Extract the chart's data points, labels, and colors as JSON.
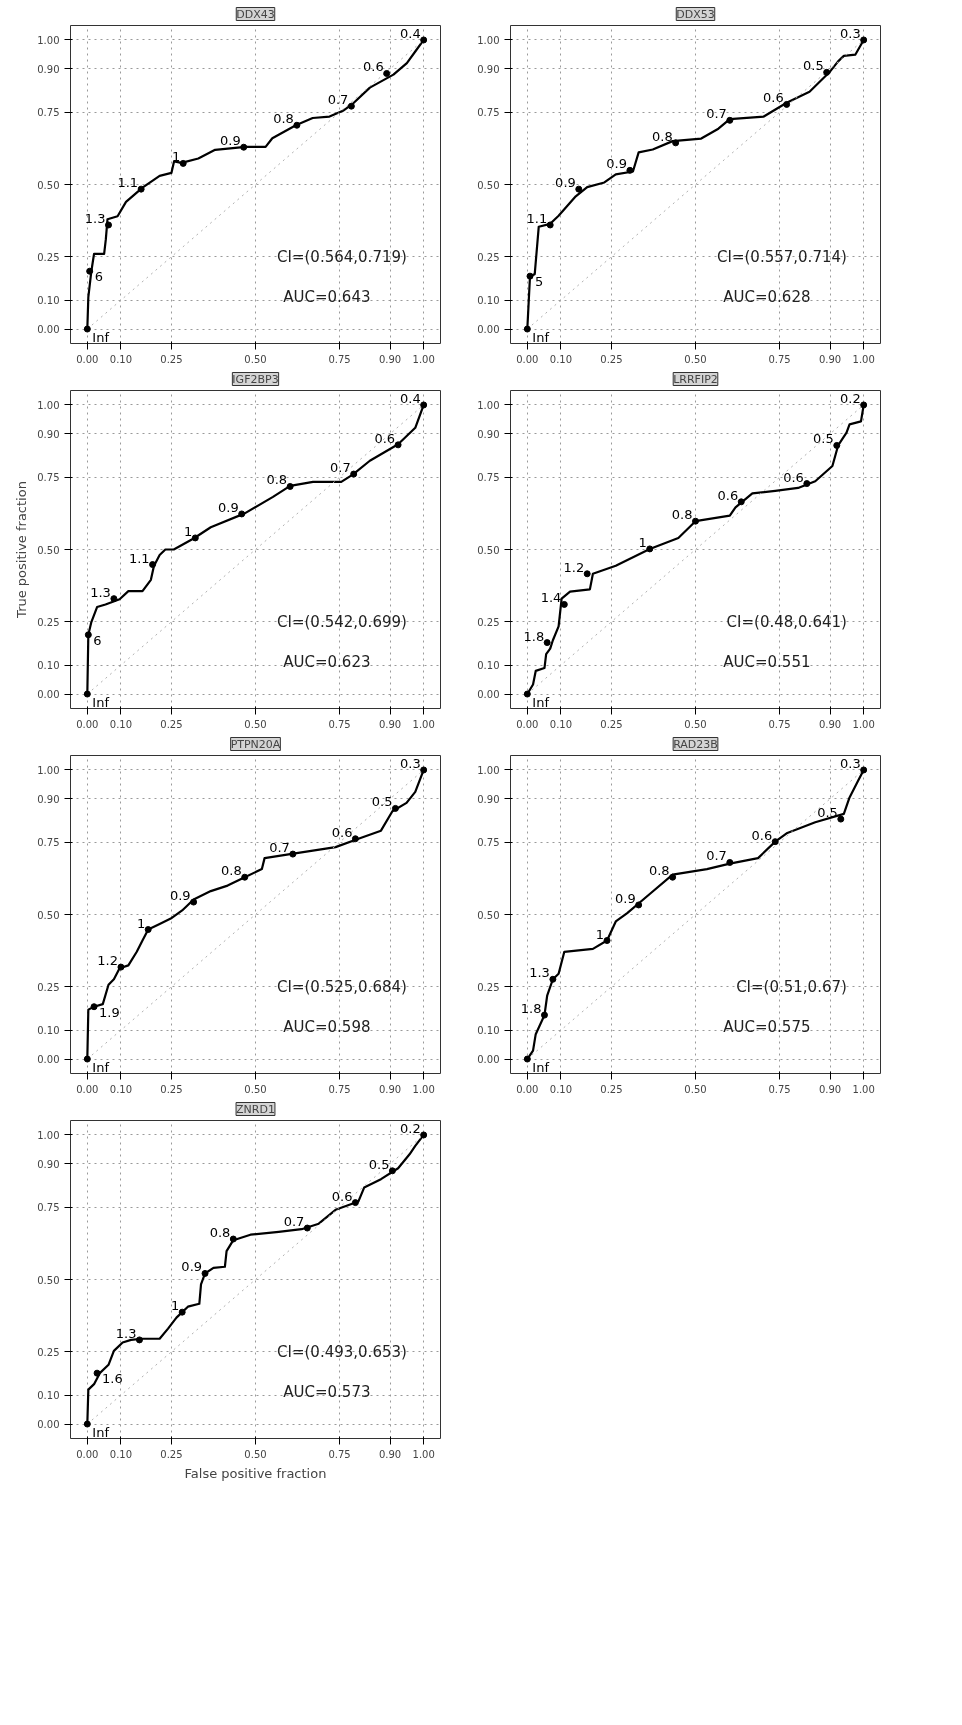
{
  "chart_data": [
    {
      "type": "line",
      "title": "DDX43",
      "xlim": [
        -0.05,
        1.05
      ],
      "ylim": [
        -0.05,
        1.05
      ],
      "xticks": [
        {
          "value": 0,
          "label": "0.00"
        },
        {
          "value": 0.1,
          "label": "0.10"
        },
        {
          "value": 0.25,
          "label": "0.25"
        },
        {
          "value": 0.5,
          "label": "0.50"
        },
        {
          "value": 0.75,
          "label": "0.75"
        },
        {
          "value": 0.9,
          "label": "0.90"
        },
        {
          "value": 1,
          "label": "1.00"
        }
      ],
      "yticks": [
        {
          "value": 0,
          "label": "0.00"
        },
        {
          "value": 0.1,
          "label": "0.10"
        },
        {
          "value": 0.25,
          "label": "0.25"
        },
        {
          "value": 0.5,
          "label": "0.50"
        },
        {
          "value": 0.75,
          "label": "0.75"
        },
        {
          "value": 0.9,
          "label": "0.90"
        },
        {
          "value": 1,
          "label": "1.00"
        }
      ],
      "grid": true,
      "series": [
        {
          "color": "#000000",
          "x": [
            0,
            0.003,
            0.012,
            0.02,
            0.05,
            0.055,
            0.06,
            0.09,
            0.115,
            0.165,
            0.19,
            0.215,
            0.25,
            0.258,
            0.28,
            0.33,
            0.38,
            0.47,
            0.53,
            0.55,
            0.62,
            0.67,
            0.72,
            0.76,
            0.79,
            0.84,
            0.91,
            0.95,
            0.975,
            1
          ],
          "values": [
            0,
            0.11,
            0.2,
            0.26,
            0.26,
            0.31,
            0.38,
            0.39,
            0.44,
            0.49,
            0.51,
            0.53,
            0.54,
            0.58,
            0.575,
            0.59,
            0.62,
            0.63,
            0.63,
            0.66,
            0.705,
            0.73,
            0.735,
            0.755,
            0.78,
            0.835,
            0.88,
            0.92,
            0.96,
            1
          ]
        },
        {
          "color": "#b0b0b0",
          "line_style": "dotted",
          "x": [
            0,
            1
          ],
          "values": [
            0,
            1
          ]
        }
      ],
      "annotations": [
        {
          "text": "Inf",
          "x": 0,
          "y": 0
        },
        {
          "text": "6",
          "x": 0.007,
          "y": 0.2
        },
        {
          "text": "1.3",
          "x": 0.063,
          "y": 0.36
        },
        {
          "text": "1.1",
          "x": 0.16,
          "y": 0.484
        },
        {
          "text": "1",
          "x": 0.285,
          "y": 0.573
        },
        {
          "text": "0.9",
          "x": 0.465,
          "y": 0.629
        },
        {
          "text": "0.8",
          "x": 0.623,
          "y": 0.705
        },
        {
          "text": "0.7",
          "x": 0.785,
          "y": 0.771
        },
        {
          "text": "0.6",
          "x": 0.89,
          "y": 0.884
        },
        {
          "text": "0.4",
          "x": 1,
          "y": 1
        },
        "CI=(0.564,0.719)",
        "AUC=0.643"
      ]
    },
    {
      "type": "line",
      "title": "DDX53",
      "xlim": [
        -0.05,
        1.05
      ],
      "ylim": [
        -0.05,
        1.05
      ],
      "xticks": [
        {
          "value": 0,
          "label": "0.00"
        },
        {
          "value": 0.1,
          "label": "0.10"
        },
        {
          "value": 0.25,
          "label": "0.25"
        },
        {
          "value": 0.5,
          "label": "0.50"
        },
        {
          "value": 0.75,
          "label": "0.75"
        },
        {
          "value": 0.9,
          "label": "0.90"
        },
        {
          "value": 1,
          "label": "1.00"
        }
      ],
      "yticks": [
        {
          "value": 0,
          "label": "0.00"
        },
        {
          "value": 0.1,
          "label": "0.10"
        },
        {
          "value": 0.25,
          "label": "0.25"
        },
        {
          "value": 0.5,
          "label": "0.50"
        },
        {
          "value": 0.75,
          "label": "0.75"
        },
        {
          "value": 0.9,
          "label": "0.90"
        },
        {
          "value": 1,
          "label": "1.00"
        }
      ],
      "grid": true,
      "series": [
        {
          "color": "#000000",
          "x": [
            0,
            0.008,
            0.022,
            0.034,
            0.068,
            0.093,
            0.144,
            0.178,
            0.229,
            0.263,
            0.314,
            0.331,
            0.373,
            0.432,
            0.517,
            0.568,
            0.602,
            0.703,
            0.771,
            0.839,
            0.898,
            0.924,
            0.941,
            0.975,
            1
          ],
          "values": [
            0,
            0.183,
            0.19,
            0.354,
            0.364,
            0.392,
            0.459,
            0.491,
            0.507,
            0.535,
            0.545,
            0.611,
            0.621,
            0.65,
            0.659,
            0.693,
            0.726,
            0.735,
            0.783,
            0.821,
            0.888,
            0.926,
            0.945,
            0.949,
            1
          ]
        },
        {
          "color": "#b0b0b0",
          "line_style": "dotted",
          "x": [
            0,
            1
          ],
          "values": [
            0,
            1
          ]
        }
      ],
      "annotations": [
        {
          "text": "Inf",
          "x": 0,
          "y": 0
        },
        {
          "text": "5",
          "x": 0.008,
          "y": 0.183
        },
        {
          "text": "1.1",
          "x": 0.068,
          "y": 0.36
        },
        {
          "text": "0.9",
          "x": 0.153,
          "y": 0.484
        },
        {
          "text": "0.9",
          "x": 0.305,
          "y": 0.549
        },
        {
          "text": "0.8",
          "x": 0.441,
          "y": 0.644
        },
        {
          "text": "0.7",
          "x": 0.602,
          "y": 0.722
        },
        {
          "text": "0.6",
          "x": 0.771,
          "y": 0.777
        },
        {
          "text": "0.5",
          "x": 0.89,
          "y": 0.888
        },
        {
          "text": "0.3",
          "x": 1,
          "y": 1
        },
        "CI=(0.557,0.714)",
        "AUC=0.628"
      ]
    },
    {
      "type": "line",
      "title": "IGF2BP3",
      "ylabel": "True positive fraction",
      "xlim": [
        -0.05,
        1.05
      ],
      "ylim": [
        -0.05,
        1.05
      ],
      "xticks": [
        {
          "value": 0,
          "label": "0.00"
        },
        {
          "value": 0.1,
          "label": "0.10"
        },
        {
          "value": 0.25,
          "label": "0.25"
        },
        {
          "value": 0.5,
          "label": "0.50"
        },
        {
          "value": 0.75,
          "label": "0.75"
        },
        {
          "value": 0.9,
          "label": "0.90"
        },
        {
          "value": 1,
          "label": "1.00"
        }
      ],
      "yticks": [
        {
          "value": 0,
          "label": "0.00"
        },
        {
          "value": 0.1,
          "label": "0.10"
        },
        {
          "value": 0.25,
          "label": "0.25"
        },
        {
          "value": 0.5,
          "label": "0.50"
        },
        {
          "value": 0.75,
          "label": "0.75"
        },
        {
          "value": 0.9,
          "label": "0.90"
        },
        {
          "value": 1,
          "label": "1.00"
        }
      ],
      "grid": true,
      "series": [
        {
          "color": "#000000",
          "x": [
            0,
            0.003,
            0.012,
            0.029,
            0.054,
            0.096,
            0.122,
            0.164,
            0.189,
            0.198,
            0.215,
            0.232,
            0.257,
            0.316,
            0.367,
            0.468,
            0.552,
            0.603,
            0.671,
            0.755,
            0.789,
            0.84,
            0.924,
            0.975,
            1
          ],
          "values": [
            0,
            0.205,
            0.249,
            0.301,
            0.31,
            0.328,
            0.356,
            0.356,
            0.395,
            0.443,
            0.481,
            0.5,
            0.5,
            0.538,
            0.577,
            0.625,
            0.682,
            0.72,
            0.734,
            0.734,
            0.759,
            0.807,
            0.864,
            0.921,
            1
          ]
        },
        {
          "color": "#b0b0b0",
          "line_style": "dotted",
          "x": [
            0,
            1
          ],
          "values": [
            0,
            1
          ]
        }
      ],
      "annotations": [
        {
          "text": "Inf",
          "x": 0,
          "y": 0
        },
        {
          "text": "6",
          "x": 0.003,
          "y": 0.205
        },
        {
          "text": "1.3",
          "x": 0.079,
          "y": 0.33
        },
        {
          "text": "1.1",
          "x": 0.194,
          "y": 0.448
        },
        {
          "text": "1",
          "x": 0.321,
          "y": 0.54
        },
        {
          "text": "0.9",
          "x": 0.459,
          "y": 0.623
        },
        {
          "text": "0.8",
          "x": 0.603,
          "y": 0.718
        },
        {
          "text": "0.7",
          "x": 0.792,
          "y": 0.761
        },
        {
          "text": "0.6",
          "x": 0.924,
          "y": 0.862
        },
        {
          "text": "0.4",
          "x": 1,
          "y": 1
        },
        "CI=(0.542,0.699)",
        "AUC=0.623"
      ]
    },
    {
      "type": "line",
      "title": "LRRFIP2",
      "xlim": [
        -0.05,
        1.05
      ],
      "ylim": [
        -0.05,
        1.05
      ],
      "xticks": [
        {
          "value": 0,
          "label": "0.00"
        },
        {
          "value": 0.1,
          "label": "0.10"
        },
        {
          "value": 0.25,
          "label": "0.25"
        },
        {
          "value": 0.5,
          "label": "0.50"
        },
        {
          "value": 0.75,
          "label": "0.75"
        },
        {
          "value": 0.9,
          "label": "0.90"
        },
        {
          "value": 1,
          "label": "1.00"
        }
      ],
      "yticks": [
        {
          "value": 0,
          "label": "0.00"
        },
        {
          "value": 0.1,
          "label": "0.10"
        },
        {
          "value": 0.25,
          "label": "0.25"
        },
        {
          "value": 0.5,
          "label": "0.50"
        },
        {
          "value": 0.75,
          "label": "0.75"
        },
        {
          "value": 0.9,
          "label": "0.90"
        },
        {
          "value": 1,
          "label": "1.00"
        }
      ],
      "grid": true,
      "series": [
        {
          "color": "#000000",
          "x": [
            0,
            0.017,
            0.025,
            0.051,
            0.056,
            0.068,
            0.076,
            0.093,
            0.102,
            0.127,
            0.186,
            0.195,
            0.263,
            0.364,
            0.449,
            0.5,
            0.602,
            0.619,
            0.669,
            0.737,
            0.805,
            0.856,
            0.907,
            0.924,
            0.949,
            0.958,
            0.992,
            1
          ],
          "values": [
            0,
            0.033,
            0.08,
            0.09,
            0.138,
            0.157,
            0.186,
            0.234,
            0.33,
            0.354,
            0.362,
            0.416,
            0.444,
            0.502,
            0.54,
            0.598,
            0.617,
            0.646,
            0.694,
            0.703,
            0.713,
            0.736,
            0.789,
            0.86,
            0.904,
            0.933,
            0.943,
            1
          ]
        },
        {
          "color": "#b0b0b0",
          "line_style": "dotted",
          "x": [
            0,
            1
          ],
          "values": [
            0,
            1
          ]
        }
      ],
      "annotations": [
        {
          "text": "Inf",
          "x": 0,
          "y": 0
        },
        {
          "text": "1.8",
          "x": 0.059,
          "y": 0.178
        },
        {
          "text": "1.4",
          "x": 0.11,
          "y": 0.31
        },
        {
          "text": "1.2",
          "x": 0.178,
          "y": 0.416
        },
        {
          "text": "1",
          "x": 0.364,
          "y": 0.502
        },
        {
          "text": "0.8",
          "x": 0.5,
          "y": 0.598
        },
        {
          "text": "0.6",
          "x": 0.636,
          "y": 0.665
        },
        {
          "text": "0.6",
          "x": 0.831,
          "y": 0.728
        },
        {
          "text": "0.5",
          "x": 0.92,
          "y": 0.86
        },
        {
          "text": "0.2",
          "x": 1,
          "y": 1
        },
        "CI=(0.48,0.641)",
        "AUC=0.551"
      ]
    },
    {
      "type": "line",
      "title": "PTPN20A",
      "xlim": [
        -0.05,
        1.05
      ],
      "ylim": [
        -0.05,
        1.05
      ],
      "xticks": [
        {
          "value": 0,
          "label": "0.00"
        },
        {
          "value": 0.1,
          "label": "0.10"
        },
        {
          "value": 0.25,
          "label": "0.25"
        },
        {
          "value": 0.5,
          "label": "0.50"
        },
        {
          "value": 0.75,
          "label": "0.75"
        },
        {
          "value": 0.9,
          "label": "0.90"
        },
        {
          "value": 1,
          "label": "1.00"
        }
      ],
      "yticks": [
        {
          "value": 0,
          "label": "0.00"
        },
        {
          "value": 0.1,
          "label": "0.10"
        },
        {
          "value": 0.25,
          "label": "0.25"
        },
        {
          "value": 0.5,
          "label": "0.50"
        },
        {
          "value": 0.75,
          "label": "0.75"
        },
        {
          "value": 0.9,
          "label": "0.90"
        },
        {
          "value": 1,
          "label": "1.00"
        }
      ],
      "grid": true,
      "series": [
        {
          "color": "#000000",
          "x": [
            0,
            0.003,
            0.02,
            0.046,
            0.063,
            0.079,
            0.096,
            0.122,
            0.147,
            0.164,
            0.181,
            0.215,
            0.248,
            0.282,
            0.316,
            0.367,
            0.417,
            0.468,
            0.519,
            0.527,
            0.603,
            0.738,
            0.806,
            0.873,
            0.907,
            0.949,
            0.975,
            1
          ],
          "values": [
            0,
            0.171,
            0.181,
            0.19,
            0.257,
            0.276,
            0.314,
            0.324,
            0.371,
            0.41,
            0.448,
            0.467,
            0.486,
            0.514,
            0.552,
            0.581,
            0.6,
            0.629,
            0.657,
            0.695,
            0.709,
            0.733,
            0.762,
            0.79,
            0.857,
            0.886,
            0.924,
            1
          ]
        },
        {
          "color": "#b0b0b0",
          "line_style": "dotted",
          "x": [
            0,
            1
          ],
          "values": [
            0,
            1
          ]
        }
      ],
      "annotations": [
        {
          "text": "Inf",
          "x": 0,
          "y": 0
        },
        {
          "text": "1.9",
          "x": 0.02,
          "y": 0.181
        },
        {
          "text": "1.2",
          "x": 0.1,
          "y": 0.318
        },
        {
          "text": "1",
          "x": 0.181,
          "y": 0.448
        },
        {
          "text": "0.9",
          "x": 0.316,
          "y": 0.543
        },
        {
          "text": "0.8",
          "x": 0.468,
          "y": 0.629
        },
        {
          "text": "0.7",
          "x": 0.611,
          "y": 0.709
        },
        {
          "text": "0.6",
          "x": 0.797,
          "y": 0.762
        },
        {
          "text": "0.5",
          "x": 0.916,
          "y": 0.867
        },
        {
          "text": "0.3",
          "x": 1,
          "y": 1
        },
        "CI=(0.525,0.684)",
        "AUC=0.598"
      ]
    },
    {
      "type": "line",
      "title": "RAD23B",
      "xlim": [
        -0.05,
        1.05
      ],
      "ylim": [
        -0.05,
        1.05
      ],
      "xticks": [
        {
          "value": 0,
          "label": "0.00"
        },
        {
          "value": 0.1,
          "label": "0.10"
        },
        {
          "value": 0.25,
          "label": "0.25"
        },
        {
          "value": 0.5,
          "label": "0.50"
        },
        {
          "value": 0.75,
          "label": "0.75"
        },
        {
          "value": 0.9,
          "label": "0.90"
        },
        {
          "value": 1,
          "label": "1.00"
        }
      ],
      "yticks": [
        {
          "value": 0,
          "label": "0.00"
        },
        {
          "value": 0.1,
          "label": "0.10"
        },
        {
          "value": 0.25,
          "label": "0.25"
        },
        {
          "value": 0.5,
          "label": "0.50"
        },
        {
          "value": 0.75,
          "label": "0.75"
        },
        {
          "value": 0.9,
          "label": "0.90"
        },
        {
          "value": 1,
          "label": "1.00"
        }
      ],
      "grid": true,
      "series": [
        {
          "color": "#000000",
          "x": [
            0,
            0.017,
            0.025,
            0.051,
            0.059,
            0.076,
            0.093,
            0.11,
            0.195,
            0.237,
            0.263,
            0.297,
            0.364,
            0.432,
            0.534,
            0.602,
            0.686,
            0.737,
            0.771,
            0.856,
            0.941,
            0.958,
            0.983,
            1
          ],
          "values": [
            0,
            0.029,
            0.086,
            0.152,
            0.219,
            0.276,
            0.295,
            0.371,
            0.381,
            0.41,
            0.476,
            0.505,
            0.571,
            0.638,
            0.657,
            0.676,
            0.695,
            0.752,
            0.781,
            0.819,
            0.848,
            0.905,
            0.962,
            1
          ]
        },
        {
          "color": "#b0b0b0",
          "line_style": "dotted",
          "x": [
            0,
            1
          ],
          "values": [
            0,
            1
          ]
        }
      ],
      "annotations": [
        {
          "text": "Inf",
          "x": 0,
          "y": 0
        },
        {
          "text": "1.8",
          "x": 0.051,
          "y": 0.152
        },
        {
          "text": "1.3",
          "x": 0.076,
          "y": 0.276
        },
        {
          "text": "1",
          "x": 0.237,
          "y": 0.41
        },
        {
          "text": "0.9",
          "x": 0.331,
          "y": 0.533
        },
        {
          "text": "0.8",
          "x": 0.432,
          "y": 0.629
        },
        {
          "text": "0.7",
          "x": 0.602,
          "y": 0.68
        },
        {
          "text": "0.6",
          "x": 0.737,
          "y": 0.752
        },
        {
          "text": "0.5",
          "x": 0.932,
          "y": 0.83
        },
        {
          "text": "0.3",
          "x": 1,
          "y": 1
        },
        "CI=(0.51,0.67)",
        "AUC=0.575"
      ]
    },
    {
      "type": "line",
      "title": "ZNRD1",
      "xlabel": "False positive fraction",
      "xlim": [
        -0.05,
        1.05
      ],
      "ylim": [
        -0.05,
        1.05
      ],
      "xticks": [
        {
          "value": 0,
          "label": "0.00"
        },
        {
          "value": 0.1,
          "label": "0.10"
        },
        {
          "value": 0.25,
          "label": "0.25"
        },
        {
          "value": 0.5,
          "label": "0.50"
        },
        {
          "value": 0.75,
          "label": "0.75"
        },
        {
          "value": 0.9,
          "label": "0.90"
        },
        {
          "value": 1,
          "label": "1.00"
        }
      ],
      "yticks": [
        {
          "value": 0,
          "label": "0.00"
        },
        {
          "value": 0.1,
          "label": "0.10"
        },
        {
          "value": 0.25,
          "label": "0.25"
        },
        {
          "value": 0.5,
          "label": "0.50"
        },
        {
          "value": 0.75,
          "label": "0.75"
        },
        {
          "value": 0.9,
          "label": "0.90"
        },
        {
          "value": 1,
          "label": "1.00"
        }
      ],
      "grid": true,
      "series": [
        {
          "color": "#000000",
          "x": [
            0,
            0.003,
            0.02,
            0.037,
            0.063,
            0.079,
            0.105,
            0.13,
            0.164,
            0.215,
            0.24,
            0.265,
            0.299,
            0.333,
            0.338,
            0.35,
            0.375,
            0.409,
            0.414,
            0.434,
            0.485,
            0.569,
            0.637,
            0.688,
            0.738,
            0.806,
            0.823,
            0.873,
            0.924,
            0.958,
            0.975,
            1
          ],
          "values": [
            0,
            0.119,
            0.138,
            0.176,
            0.205,
            0.253,
            0.282,
            0.291,
            0.295,
            0.295,
            0.33,
            0.368,
            0.406,
            0.416,
            0.483,
            0.521,
            0.54,
            0.544,
            0.598,
            0.636,
            0.655,
            0.665,
            0.674,
            0.693,
            0.741,
            0.77,
            0.818,
            0.847,
            0.885,
            0.933,
            0.962,
            1
          ]
        },
        {
          "color": "#b0b0b0",
          "line_style": "dotted",
          "x": [
            0,
            1
          ],
          "values": [
            0,
            1
          ]
        }
      ],
      "annotations": [
        {
          "text": "Inf",
          "x": 0,
          "y": 0
        },
        {
          "text": "1.6",
          "x": 0.029,
          "y": 0.176
        },
        {
          "text": "1.3",
          "x": 0.155,
          "y": 0.291
        },
        {
          "text": "1",
          "x": 0.282,
          "y": 0.387
        },
        {
          "text": "0.9",
          "x": 0.35,
          "y": 0.521
        },
        {
          "text": "0.8",
          "x": 0.434,
          "y": 0.64
        },
        {
          "text": "0.7",
          "x": 0.654,
          "y": 0.678
        },
        {
          "text": "0.6",
          "x": 0.797,
          "y": 0.766
        },
        {
          "text": "0.5",
          "x": 0.907,
          "y": 0.876
        },
        {
          "text": "0.2",
          "x": 1,
          "y": 1
        },
        "CI=(0.493,0.653)",
        "AUC=0.573"
      ]
    }
  ]
}
